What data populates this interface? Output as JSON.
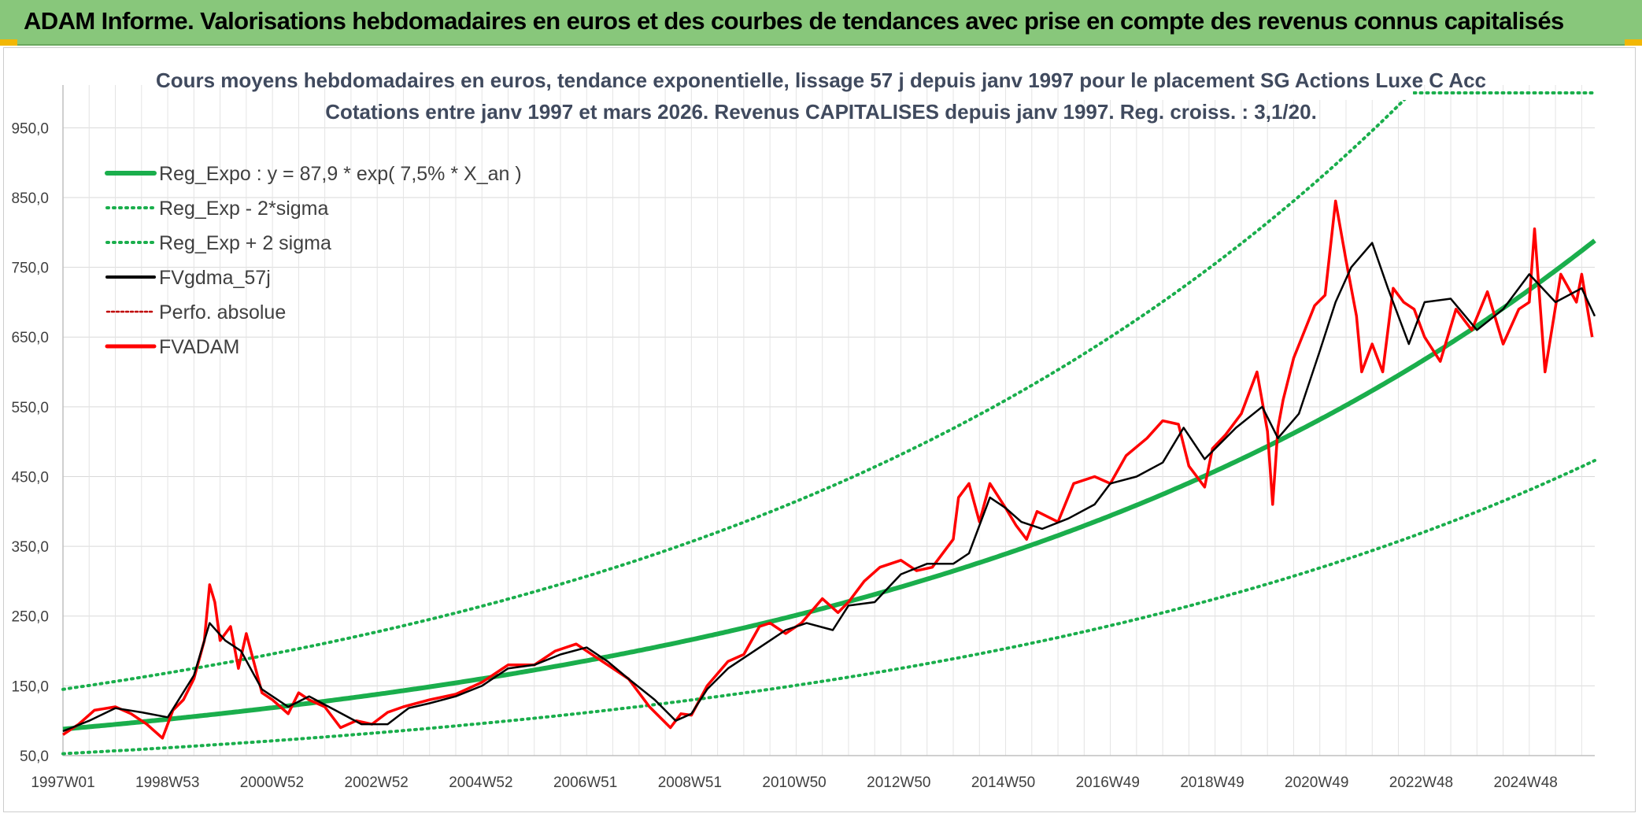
{
  "header": {
    "title": "ADAM Informe. Valorisations hebdomadaires en euros et des courbes de tendances avec prise en compte des revenus connus capitalisés"
  },
  "chart_data": {
    "type": "line",
    "title": "Cours moyens hebdomadaires en euros, tendance exponentielle, lissage 57 j depuis janv 1997 pour le placement SG Actions Luxe C Acc",
    "subtitle": "Cotations entre janv 1997 et mars 2026. Revenus CAPITALISES depuis janv 1997. Reg. croiss. : 3,1/20.",
    "x_ticks": [
      "1997W01",
      "1998W53",
      "2000W52",
      "2002W52",
      "2004W52",
      "2006W51",
      "2008W51",
      "2010W50",
      "2012W50",
      "2014W50",
      "2016W49",
      "2018W49",
      "2020W49",
      "2022W48",
      "2024W48"
    ],
    "y_ticks": [
      "50,0",
      "150,0",
      "250,0",
      "350,0",
      "450,0",
      "550,0",
      "650,0",
      "750,0",
      "850,0",
      "950,0"
    ],
    "ylim": [
      50,
      1000
    ],
    "xlim": [
      1997.0,
      2026.25
    ],
    "grid": true,
    "legend_position": "top-left",
    "regression": {
      "a": 87.9,
      "rate": 0.075,
      "sigma_factor_low": 0.6,
      "sigma_factor_high": 1.65
    },
    "series": [
      {
        "name": "Reg_Expo : y = 87,9 * exp( 7,5% *  X_an )",
        "color": "#1aae4c",
        "style": "solid-thick"
      },
      {
        "name": "Reg_Exp - 2*sigma",
        "color": "#1aae4c",
        "style": "dotted"
      },
      {
        "name": "Reg_Exp + 2 sigma",
        "color": "#1aae4c",
        "style": "dotted"
      },
      {
        "name": "FVgdma_57j",
        "color": "#000000",
        "style": "solid",
        "x": [
          1997.0,
          1997.5,
          1998.0,
          1998.5,
          1999.0,
          1999.5,
          1999.8,
          2000.1,
          2000.4,
          2000.8,
          2001.3,
          2001.7,
          2002.2,
          2002.7,
          2003.2,
          2003.6,
          2004.0,
          2004.5,
          2005.0,
          2005.5,
          2006.0,
          2006.5,
          2007.0,
          2007.4,
          2007.8,
          2008.3,
          2008.7,
          2009.0,
          2009.3,
          2009.7,
          2010.0,
          2010.5,
          2010.8,
          2011.2,
          2011.7,
          2012.0,
          2012.5,
          2013.0,
          2013.5,
          2014.0,
          2014.3,
          2014.7,
          2015.0,
          2015.3,
          2015.7,
          2016.2,
          2016.7,
          2017.0,
          2017.5,
          2018.0,
          2018.4,
          2018.8,
          2019.0,
          2019.4,
          2019.9,
          2020.2,
          2020.6,
          2021.0,
          2021.3,
          2021.6,
          2022.0,
          2022.3,
          2022.7,
          2023.0,
          2023.5,
          2024.0,
          2024.5,
          2025.0,
          2025.5,
          2026.0,
          2026.25
        ],
        "values": [
          85,
          100,
          118,
          112,
          105,
          165,
          240,
          215,
          200,
          145,
          120,
          135,
          115,
          95,
          95,
          118,
          125,
          135,
          150,
          175,
          180,
          195,
          205,
          185,
          160,
          130,
          100,
          110,
          145,
          175,
          190,
          215,
          230,
          240,
          230,
          265,
          270,
          310,
          325,
          325,
          340,
          420,
          405,
          385,
          375,
          390,
          410,
          440,
          450,
          470,
          520,
          475,
          490,
          520,
          550,
          505,
          540,
          630,
          700,
          750,
          785,
          720,
          640,
          700,
          705,
          660,
          690,
          740,
          700,
          720,
          680
        ]
      },
      {
        "name": "Perfo. absolue",
        "color": "#c00000",
        "style": "dotted"
      },
      {
        "name": "FVADAM",
        "color": "#ff0000",
        "style": "solid-thick",
        "x": [
          1997.0,
          1997.3,
          1997.6,
          1998.0,
          1998.3,
          1998.6,
          1998.9,
          1999.1,
          1999.3,
          1999.5,
          1999.7,
          1999.8,
          1999.9,
          2000.0,
          2000.2,
          2000.35,
          2000.5,
          2000.8,
          2001.0,
          2001.3,
          2001.5,
          2001.7,
          2002.0,
          2002.3,
          2002.6,
          2002.9,
          2003.2,
          2003.5,
          2004.0,
          2004.5,
          2005.0,
          2005.5,
          2006.0,
          2006.4,
          2006.8,
          2007.2,
          2007.5,
          2007.8,
          2008.2,
          2008.6,
          2008.8,
          2009.0,
          2009.3,
          2009.7,
          2010.0,
          2010.3,
          2010.5,
          2010.8,
          2011.1,
          2011.5,
          2011.8,
          2012.0,
          2012.3,
          2012.6,
          2013.0,
          2013.3,
          2013.6,
          2014.0,
          2014.1,
          2014.3,
          2014.5,
          2014.7,
          2015.0,
          2015.2,
          2015.4,
          2015.6,
          2016.0,
          2016.3,
          2016.7,
          2017.0,
          2017.3,
          2017.7,
          2018.0,
          2018.3,
          2018.5,
          2018.8,
          2018.95,
          2019.2,
          2019.5,
          2019.8,
          2020.0,
          2020.1,
          2020.2,
          2020.3,
          2020.5,
          2020.9,
          2021.1,
          2021.3,
          2021.5,
          2021.7,
          2021.8,
          2022.0,
          2022.2,
          2022.4,
          2022.6,
          2022.8,
          2023.0,
          2023.3,
          2023.6,
          2023.9,
          2024.2,
          2024.5,
          2024.8,
          2025.0,
          2025.1,
          2025.3,
          2025.6,
          2025.9,
          2026.0,
          2026.2
        ],
        "values": [
          80,
          95,
          115,
          120,
          110,
          95,
          75,
          115,
          130,
          160,
          215,
          295,
          270,
          215,
          235,
          175,
          225,
          140,
          130,
          110,
          140,
          130,
          120,
          90,
          100,
          95,
          112,
          120,
          130,
          138,
          155,
          180,
          180,
          200,
          210,
          190,
          175,
          160,
          120,
          90,
          110,
          108,
          150,
          185,
          195,
          235,
          240,
          225,
          240,
          275,
          255,
          270,
          300,
          320,
          330,
          315,
          320,
          360,
          420,
          440,
          385,
          440,
          405,
          380,
          360,
          400,
          385,
          440,
          450,
          440,
          480,
          505,
          530,
          525,
          465,
          435,
          490,
          510,
          540,
          600,
          515,
          410,
          520,
          560,
          620,
          695,
          710,
          845,
          760,
          680,
          600,
          640,
          600,
          720,
          700,
          690,
          650,
          615,
          690,
          660,
          715,
          640,
          690,
          700,
          805,
          600,
          740,
          700,
          740,
          650
        ]
      }
    ]
  }
}
